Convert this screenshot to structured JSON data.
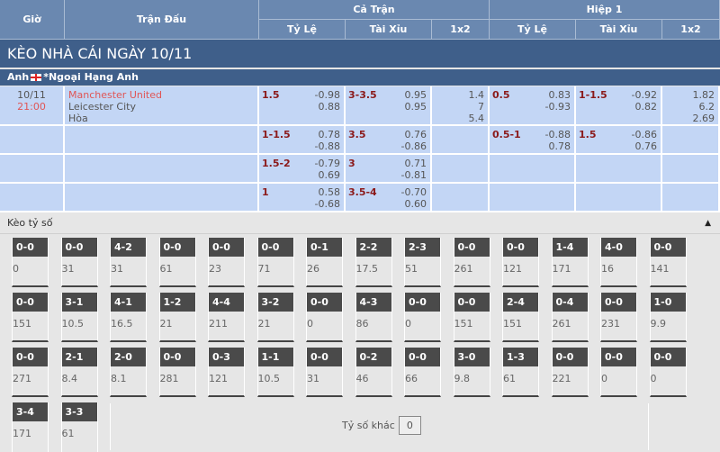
{
  "header": {
    "gio": "Giờ",
    "tran_dau": "Trận Đấu",
    "ca_tran": "Cả Trận",
    "hiep1": "Hiệp 1",
    "ty_le": "Tỷ Lệ",
    "tai_xiu": "Tài Xỉu",
    "x12": "1x2"
  },
  "title": "KÈO NHÀ CÁI NGÀY 10/11",
  "league": {
    "country": "Anh",
    "name": "*Ngoại Hạng Anh"
  },
  "match": {
    "date": "10/11",
    "time": "21:00",
    "home": "Manchester United",
    "away": "Leicester City",
    "draw": "Hòa"
  },
  "rows": [
    {
      "ft_hdp": {
        "line": "1.5",
        "o1": "-0.98",
        "o2": "0.88"
      },
      "ft_ou": {
        "line": "3-3.5",
        "o1": "0.95",
        "o2": "0.95"
      },
      "ft_1x2": [
        "1.4",
        "7",
        "5.4"
      ],
      "h1_hdp": {
        "line": "0.5",
        "o1": "0.83",
        "o2": "-0.93"
      },
      "h1_ou": {
        "line": "1-1.5",
        "o1": "-0.92",
        "o2": "0.82"
      },
      "h1_1x2": [
        "1.82",
        "6.2",
        "2.69"
      ]
    },
    {
      "ft_hdp": {
        "line": "1-1.5",
        "o1": "0.78",
        "o2": "-0.88"
      },
      "ft_ou": {
        "line": "3.5",
        "o1": "0.76",
        "o2": "-0.86"
      },
      "ft_1x2": [],
      "h1_hdp": {
        "line": "0.5-1",
        "o1": "-0.88",
        "o2": "0.78"
      },
      "h1_ou": {
        "line": "1.5",
        "o1": "-0.86",
        "o2": "0.76"
      },
      "h1_1x2": []
    },
    {
      "ft_hdp": {
        "line": "1.5-2",
        "o1": "-0.79",
        "o2": "0.69"
      },
      "ft_ou": {
        "line": "3",
        "o1": "0.71",
        "o2": "-0.81"
      },
      "ft_1x2": [],
      "h1_hdp": null,
      "h1_ou": null,
      "h1_1x2": []
    },
    {
      "ft_hdp": {
        "line": "1",
        "o1": "0.58",
        "o2": "-0.68"
      },
      "ft_ou": {
        "line": "3.5-4",
        "o1": "-0.70",
        "o2": "0.60"
      },
      "ft_1x2": [],
      "h1_hdp": null,
      "h1_ou": null,
      "h1_1x2": []
    }
  ],
  "scores_title": "Kèo tỷ số",
  "scores": [
    [
      "0-0",
      "0"
    ],
    [
      "0-0",
      "31"
    ],
    [
      "4-2",
      "31"
    ],
    [
      "0-0",
      "61"
    ],
    [
      "0-0",
      "23"
    ],
    [
      "0-0",
      "71"
    ],
    [
      "0-1",
      "26"
    ],
    [
      "2-2",
      "17.5"
    ],
    [
      "2-3",
      "51"
    ],
    [
      "0-0",
      "261"
    ],
    [
      "0-0",
      "121"
    ],
    [
      "1-4",
      "171"
    ],
    [
      "4-0",
      "16"
    ],
    [
      "0-0",
      "141"
    ],
    [
      "0-0",
      "151"
    ],
    [
      "3-1",
      "10.5"
    ],
    [
      "4-1",
      "16.5"
    ],
    [
      "1-2",
      "21"
    ],
    [
      "4-4",
      "211"
    ],
    [
      "3-2",
      "21"
    ],
    [
      "0-0",
      "0"
    ],
    [
      "4-3",
      "86"
    ],
    [
      "0-0",
      "0"
    ],
    [
      "0-0",
      "151"
    ],
    [
      "2-4",
      "151"
    ],
    [
      "0-4",
      "261"
    ],
    [
      "0-0",
      "231"
    ],
    [
      "1-0",
      "9.9"
    ],
    [
      "0-0",
      "271"
    ],
    [
      "2-1",
      "8.4"
    ],
    [
      "2-0",
      "8.1"
    ],
    [
      "0-0",
      "281"
    ],
    [
      "0-3",
      "121"
    ],
    [
      "1-1",
      "10.5"
    ],
    [
      "0-0",
      "31"
    ],
    [
      "0-2",
      "46"
    ],
    [
      "0-0",
      "66"
    ],
    [
      "3-0",
      "9.8"
    ],
    [
      "1-3",
      "61"
    ],
    [
      "0-0",
      "221"
    ],
    [
      "0-0",
      "0"
    ],
    [
      "0-0",
      "0"
    ],
    [
      "3-4",
      "171"
    ],
    [
      "3-3",
      "61"
    ]
  ],
  "other": {
    "label": "Tỷ số khác",
    "value": "0"
  }
}
